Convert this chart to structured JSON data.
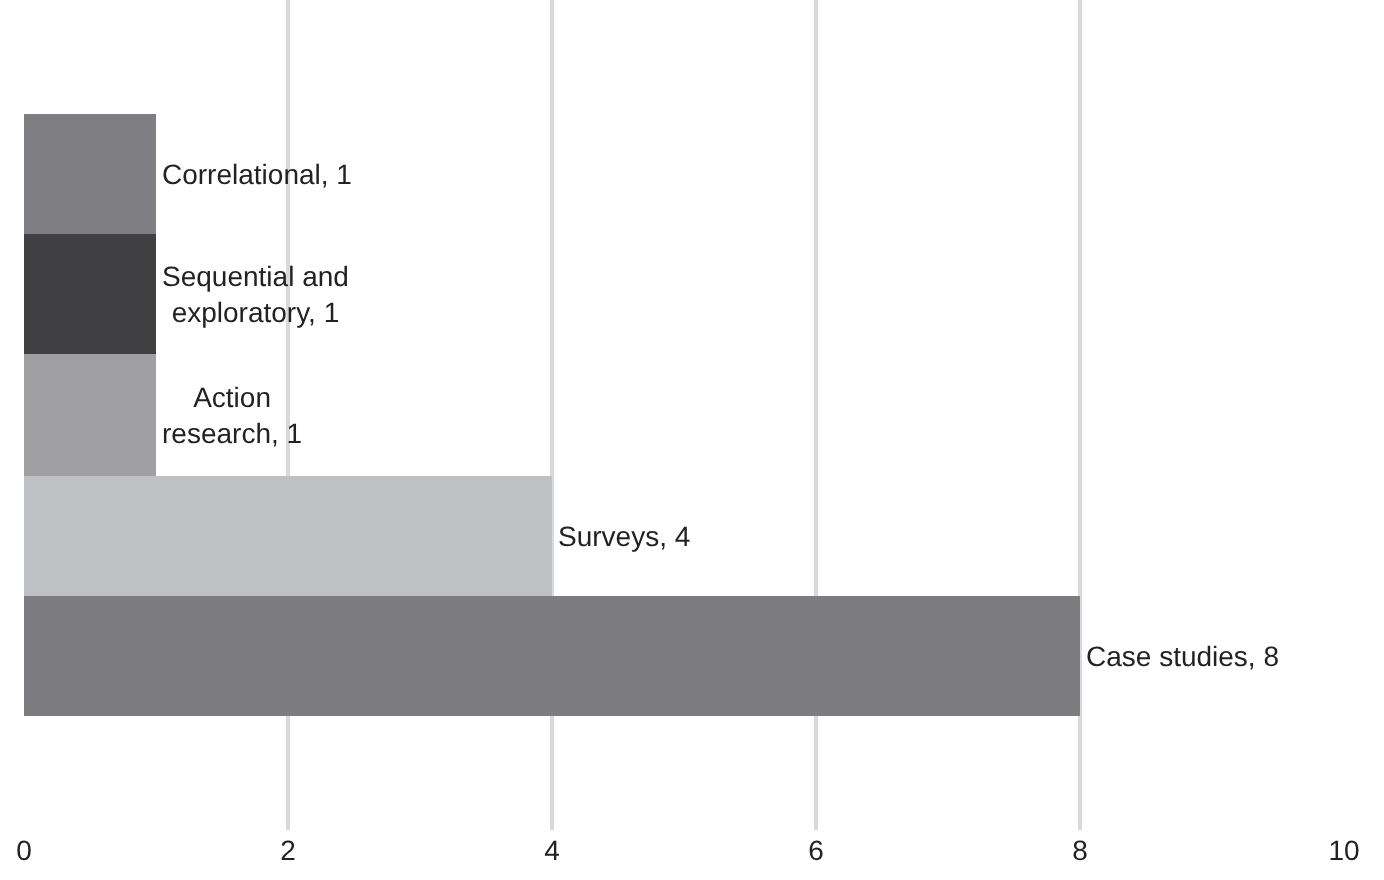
{
  "chart_data": {
    "type": "bar",
    "orientation": "horizontal",
    "categories": [
      null,
      null,
      null,
      null,
      null
    ],
    "values": [
      1,
      1,
      1,
      4,
      8
    ],
    "colors": [
      "#7f7f83",
      "#404042",
      "#a0a0a3",
      "#bfc0c3",
      "#7c7c80"
    ],
    "value_labels": [
      "Correlational, 1",
      "Sequential and\nexploratory, 1",
      "Action\nresearch, 1",
      "Surveys, 4",
      "Case studies, 8"
    ],
    "xlim": [
      0,
      10
    ],
    "xticks": [
      0,
      2,
      4,
      6,
      8,
      10
    ],
    "grid": "x"
  }
}
